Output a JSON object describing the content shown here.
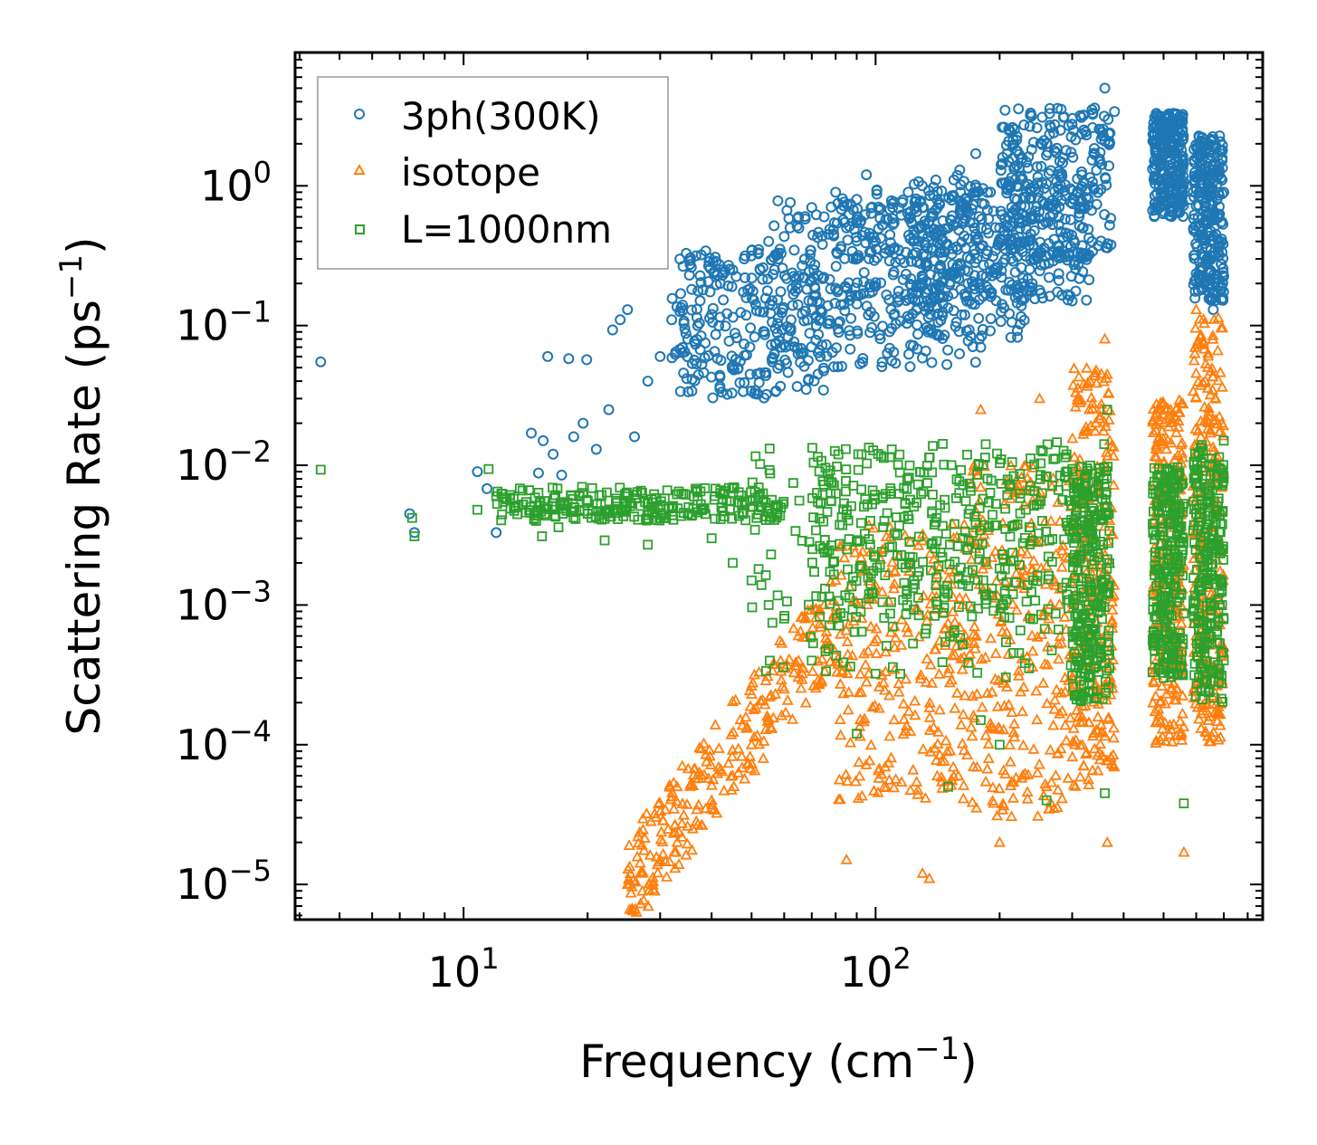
{
  "chart_data": {
    "type": "scatter",
    "title": "",
    "xlabel": "Frequency (cm",
    "xlabel_exp": "−1",
    "xlabel_close": ")",
    "ylabel": "Scattering Rate (ps",
    "ylabel_exp": "−1",
    "ylabel_close": ")",
    "xscale": "log",
    "yscale": "log",
    "xlim": [
      3.9,
      870
    ],
    "ylim": [
      5.6e-06,
      9.0
    ],
    "x_ticks": [
      {
        "value": 10,
        "base": "10",
        "exp": "1"
      },
      {
        "value": 100,
        "base": "10",
        "exp": "2"
      }
    ],
    "y_ticks": [
      {
        "value": 1,
        "base": "10",
        "exp": "0"
      },
      {
        "value": 0.1,
        "base": "10",
        "exp": "−1"
      },
      {
        "value": 0.01,
        "base": "10",
        "exp": "−2"
      },
      {
        "value": 0.001,
        "base": "10",
        "exp": "−3"
      },
      {
        "value": 0.0001,
        "base": "10",
        "exp": "−4"
      },
      {
        "value": 1e-05,
        "base": "10",
        "exp": "−5"
      }
    ],
    "legend_position": "top-left",
    "series": [
      {
        "name": "3ph(300K)",
        "marker": "circle",
        "color": "#1f77b4",
        "points": [
          [
            4.5,
            0.055
          ],
          [
            7.4,
            0.0045
          ],
          [
            7.6,
            0.0033
          ],
          [
            10.8,
            0.009
          ],
          [
            11.4,
            0.0068
          ],
          [
            12,
            0.0033
          ],
          [
            14.6,
            0.017
          ],
          [
            15.2,
            0.0088
          ],
          [
            15.6,
            0.015
          ],
          [
            16,
            0.06
          ],
          [
            16.5,
            0.012
          ],
          [
            17.3,
            0.0085
          ],
          [
            18,
            0.058
          ],
          [
            18.5,
            0.016
          ],
          [
            19.5,
            0.02
          ],
          [
            19.9,
            0.057
          ],
          [
            21,
            0.013
          ],
          [
            22.5,
            0.025
          ],
          [
            23,
            0.093
          ],
          [
            24,
            0.11
          ],
          [
            25,
            0.13
          ],
          [
            26,
            0.016
          ],
          [
            28,
            0.04
          ],
          [
            30,
            0.06
          ],
          [
            32,
            0.11
          ],
          [
            34,
            0.14
          ],
          [
            35,
            0.08
          ],
          [
            37,
            0.1
          ],
          [
            40,
            0.12
          ],
          [
            42,
            0.2
          ],
          [
            45,
            0.25
          ],
          [
            48,
            0.3
          ],
          [
            52,
            0.35
          ],
          [
            55,
            0.4
          ],
          [
            58,
            0.3
          ],
          [
            62,
            0.5
          ],
          [
            65,
            0.6
          ],
          [
            70,
            0.7
          ],
          [
            75,
            0.6
          ],
          [
            80,
            0.9
          ],
          [
            85,
            0.5
          ],
          [
            90,
            0.8
          ],
          [
            95,
            1.2
          ],
          [
            100,
            0.4
          ],
          [
            110,
            0.7
          ],
          [
            120,
            0.9
          ],
          [
            130,
            0.7
          ],
          [
            140,
            1.1
          ],
          [
            150,
            0.5
          ],
          [
            160,
            1.3
          ],
          [
            170,
            0.3
          ],
          [
            175,
            1.7
          ],
          [
            180,
            0.07
          ],
          [
            190,
            0.9
          ],
          [
            200,
            0.5
          ],
          [
            220,
            1.0
          ],
          [
            240,
            0.2
          ],
          [
            260,
            2.0
          ],
          [
            280,
            1.5
          ],
          [
            300,
            0.15
          ],
          [
            320,
            3.2
          ],
          [
            340,
            3.6
          ],
          [
            360,
            5.0
          ],
          [
            380,
            3.4
          ],
          [
            480,
            3.3
          ],
          [
            500,
            2.2
          ],
          [
            520,
            2.5
          ],
          [
            540,
            1.2
          ],
          [
            580,
            0.8
          ],
          [
            620,
            2.2
          ],
          [
            640,
            0.3
          ],
          [
            660,
            0.13
          ],
          [
            700,
            0.9
          ]
        ],
        "clusters": [
          {
            "x": [
              55,
              180
            ],
            "y": [
              0.05,
              0.8
            ]
          },
          {
            "x": [
              80,
              240
            ],
            "y": [
              0.08,
              1.0
            ]
          },
          {
            "x": [
              120,
              330
            ],
            "y": [
              0.15,
              1.2
            ]
          },
          {
            "x": [
              200,
              375
            ],
            "y": [
              0.3,
              3.6
            ]
          },
          {
            "x": [
              470,
              560
            ],
            "y": [
              0.6,
              3.3
            ]
          },
          {
            "x": [
              590,
              700
            ],
            "y": [
              0.15,
              2.3
            ]
          },
          {
            "x": [
              32,
              75
            ],
            "y": [
              0.03,
              0.35
            ]
          }
        ]
      },
      {
        "name": "isotope",
        "marker": "triangle",
        "color": "#ff7f0e",
        "points": [
          [
            25,
            1e-05
          ],
          [
            27,
            1.2e-05
          ],
          [
            30,
            1.5e-05
          ],
          [
            33,
            2e-05
          ],
          [
            36,
            2.5e-05
          ],
          [
            40,
            4e-05
          ],
          [
            45,
            6e-05
          ],
          [
            50,
            0.0001
          ],
          [
            55,
            0.00015
          ],
          [
            60,
            0.00025
          ],
          [
            65,
            0.0004
          ],
          [
            70,
            0.0006
          ],
          [
            75,
            0.001
          ],
          [
            80,
            0.0015
          ],
          [
            85,
            1.5e-05
          ],
          [
            130,
            1.2e-05
          ],
          [
            135,
            1.1e-05
          ],
          [
            180,
            0.025
          ],
          [
            200,
            2e-05
          ],
          [
            250,
            0.03
          ],
          [
            260,
            5e-05
          ],
          [
            330,
            0.025
          ],
          [
            360,
            0.08
          ],
          [
            365,
            2e-05
          ],
          [
            520,
            0.025
          ],
          [
            560,
            1.7e-05
          ],
          [
            600,
            0.13
          ],
          [
            640,
            0.05
          ],
          [
            700,
            0.0005
          ]
        ],
        "clusters": [
          {
            "x": [
              25,
              80
            ],
            "y": [
              1e-05,
              0.0008
            ],
            "band": true
          },
          {
            "x": [
              80,
              170
            ],
            "y": [
              4e-05,
              0.004
            ]
          },
          {
            "x": [
              170,
              300
            ],
            "y": [
              3e-05,
              0.01
            ]
          },
          {
            "x": [
              300,
              380
            ],
            "y": [
              5e-05,
              0.05
            ]
          },
          {
            "x": [
              470,
              560
            ],
            "y": [
              0.0001,
              0.03
            ]
          },
          {
            "x": [
              590,
              700
            ],
            "y": [
              0.0001,
              0.12
            ]
          }
        ]
      },
      {
        "name": "L=1000nm",
        "marker": "square",
        "color": "#2ca02c",
        "points": [
          [
            4.5,
            0.0093
          ],
          [
            7.5,
            0.0042
          ],
          [
            7.6,
            0.0031
          ],
          [
            10.8,
            0.0048
          ],
          [
            11.5,
            0.0094
          ],
          [
            12,
            0.006
          ],
          [
            13,
            0.0049
          ],
          [
            15,
            0.004
          ],
          [
            15.5,
            0.0031
          ],
          [
            17,
            0.0036
          ],
          [
            20,
            0.0045
          ],
          [
            22,
            0.0029
          ],
          [
            25,
            0.006
          ],
          [
            28,
            0.0027
          ],
          [
            32,
            0.005
          ],
          [
            35,
            0.0045
          ],
          [
            40,
            0.003
          ],
          [
            45,
            0.002
          ],
          [
            50,
            0.0015
          ],
          [
            55,
            0.001
          ],
          [
            60,
            0.0008
          ],
          [
            70,
            0.0004
          ],
          [
            90,
            0.00012
          ],
          [
            110,
            0.0007
          ],
          [
            150,
            5e-05
          ],
          [
            180,
            0.00015
          ],
          [
            200,
            0.0001
          ],
          [
            260,
            4e-05
          ],
          [
            360,
            4.5e-05
          ],
          [
            365,
            0.025
          ],
          [
            560,
            3.8e-05
          ],
          [
            700,
            0.015
          ]
        ],
        "clusters": [
          {
            "x": [
              12,
              60
            ],
            "y": [
              0.004,
              0.007
            ]
          },
          {
            "x": [
              50,
              360
            ],
            "y": [
              0.0003,
              0.015
            ]
          },
          {
            "x": [
              70,
              300
            ],
            "y": [
              0.0008,
              0.012
            ]
          },
          {
            "x": [
              300,
              370
            ],
            "y": [
              0.0002,
              0.01
            ]
          },
          {
            "x": [
              470,
              560
            ],
            "y": [
              0.0003,
              0.01
            ]
          },
          {
            "x": [
              590,
              700
            ],
            "y": [
              0.0002,
              0.015
            ]
          }
        ]
      }
    ]
  }
}
